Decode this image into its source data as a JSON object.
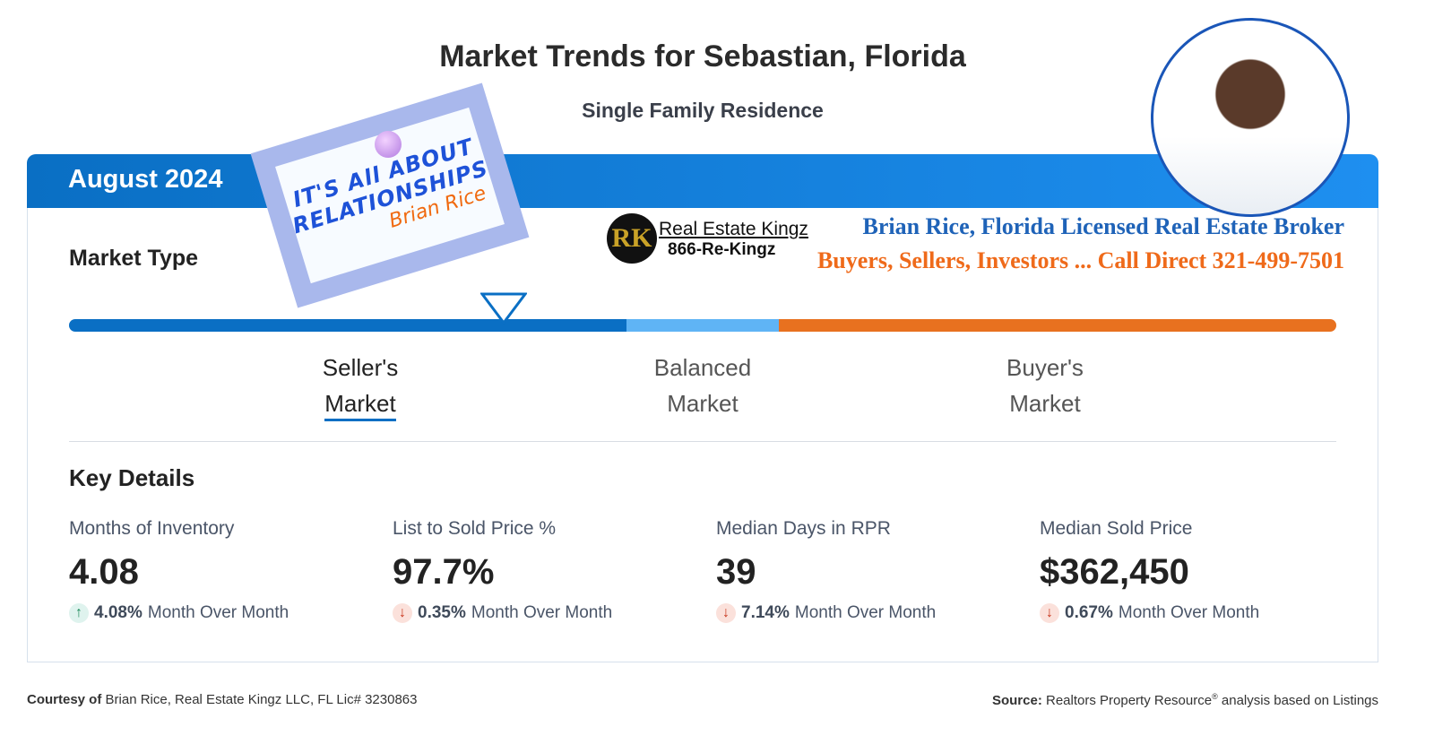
{
  "title": "Market Trends for Sebastian, Florida",
  "subtitle": "Single Family Residence",
  "month": "August 2024",
  "market_type_label": "Market Type",
  "note": {
    "line1": "IT'S All ABOUT",
    "line2": "RELATIONSHIPS",
    "line3": "Brian Rice"
  },
  "brand": {
    "logo_letters": "RK",
    "name": "Real Estate Kingz",
    "phone": "866-Re-Kingz"
  },
  "broker_line": "Brian Rice, Florida Licensed Real Estate Broker",
  "call_line": "Buyers, Sellers, Investors ... Call Direct 321-499-7501",
  "scale": {
    "segments": [
      {
        "label": "Seller's",
        "color": "#0a6fc4"
      },
      {
        "label": "Balanced",
        "color": "#5fb4f5"
      },
      {
        "label": "Buyer's",
        "color": "#e8711f"
      }
    ],
    "indicator_position_pct": 34.3
  },
  "market_labels": {
    "sellers": [
      "Seller's",
      "Market"
    ],
    "balanced": [
      "Balanced",
      "Market"
    ],
    "buyers": [
      "Buyer's",
      "Market"
    ]
  },
  "key_details_title": "Key Details",
  "metrics": [
    {
      "label": "Months of Inventory",
      "value": "4.08",
      "change": "4.08%",
      "direction": "up",
      "suffix": "Month Over Month"
    },
    {
      "label": "List to Sold Price %",
      "value": "97.7%",
      "change": "0.35%",
      "direction": "down",
      "suffix": "Month Over Month"
    },
    {
      "label": "Median Days in RPR",
      "value": "39",
      "change": "7.14%",
      "direction": "down",
      "suffix": "Month Over Month"
    },
    {
      "label": "Median Sold Price",
      "value": "$362,450",
      "change": "0.67%",
      "direction": "down",
      "suffix": "Month Over Month"
    }
  ],
  "footer": {
    "courtesy_label": "Courtesy of",
    "courtesy_text": "Brian Rice, Real Estate Kingz LLC, FL Lic# 3230863",
    "source_label": "Source:",
    "source_text": "Realtors Property Resource",
    "source_sup": "®",
    "source_tail": "analysis based on Listings"
  }
}
